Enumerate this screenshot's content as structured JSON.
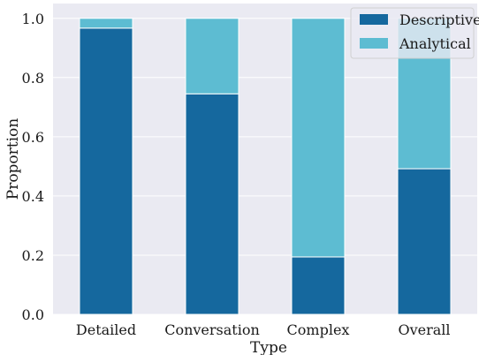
{
  "chart_data": {
    "type": "bar",
    "stacked": true,
    "categories": [
      "Detailed",
      "Conversation",
      "Complex",
      "Overall"
    ],
    "series": [
      {
        "name": "Descriptive",
        "color": "#15689e",
        "values": [
          0.967,
          0.745,
          0.194,
          0.492
        ]
      },
      {
        "name": "Analytical",
        "color": "#5dbcd2",
        "values": [
          0.033,
          0.255,
          0.806,
          0.508
        ]
      }
    ],
    "title": "",
    "xlabel": "Type",
    "ylabel": "Proportion",
    "ylim": [
      0,
      1.05
    ],
    "yticks": [
      "0.0",
      "0.2",
      "0.4",
      "0.6",
      "0.8",
      "1.0"
    ],
    "grid": true,
    "legend_position": "top-right",
    "colors": {
      "plot_background": "#eaeaf2",
      "grid": "#ffffff"
    }
  }
}
